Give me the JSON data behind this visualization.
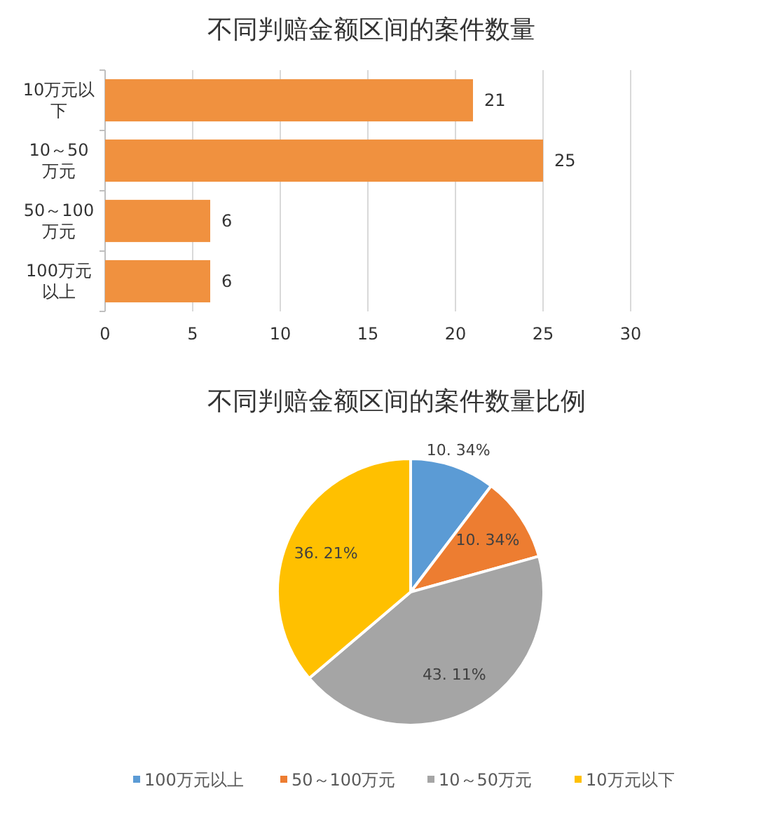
{
  "chart_data": [
    {
      "type": "bar",
      "title": "不同判赔金额区间的案件数量",
      "orientation": "horizontal",
      "categories": [
        "10万元以下",
        "10～50万元",
        "50～100万元",
        "100万元以上"
      ],
      "values": [
        21,
        25,
        6,
        6
      ],
      "color": "#f0913f",
      "xlim": [
        0,
        30
      ],
      "xticks": [
        0,
        5,
        10,
        15,
        20,
        25,
        30
      ],
      "grid": "x",
      "data_labels": true
    },
    {
      "type": "pie",
      "title": "不同判赔金额区间的案件数量比例",
      "categories": [
        "100万元以上",
        "50～100万元",
        "10～50万元",
        "10万元以下"
      ],
      "values": [
        10.34,
        10.34,
        43.11,
        36.21
      ],
      "colors": [
        "#5b9bd5",
        "#ed7d31",
        "#a5a5a5",
        "#ffc000"
      ],
      "value_labels": [
        "10. 34%",
        "10. 34%",
        "43. 11%",
        "36. 21%"
      ],
      "legend": "bottom"
    }
  ]
}
